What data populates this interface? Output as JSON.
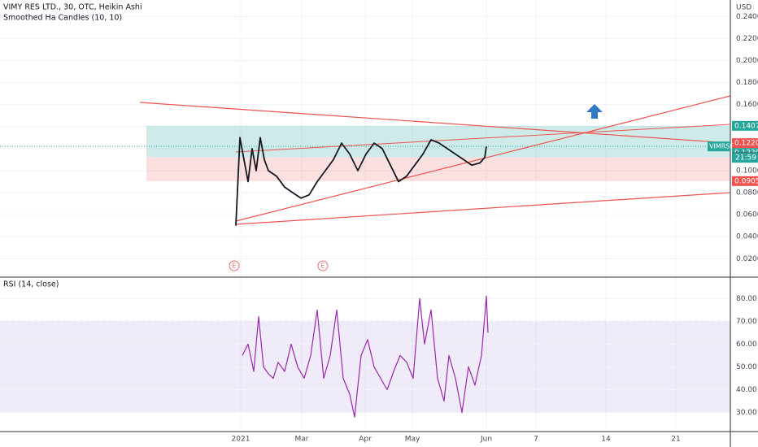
{
  "chart_data": [
    {
      "type": "line",
      "title": "VIMY RES LTD., 30, OTC, Heikin Ashi",
      "subtitle": "Smoothed Ha Candles (10, 10)",
      "currency": "USD",
      "symbol": "VIMRSF",
      "countdown": "21:59",
      "events": [
        "E",
        "E"
      ],
      "x": [
        290,
        295,
        300,
        305,
        310,
        315,
        320,
        325,
        330,
        340,
        350,
        360,
        370,
        380,
        390,
        400,
        410,
        420,
        430,
        440,
        450,
        460,
        470,
        480,
        490,
        500,
        510,
        520,
        530,
        540,
        550,
        560,
        570,
        580,
        590,
        596,
        598
      ],
      "series": [
        {
          "name": "Close",
          "color": "#131722",
          "values": [
            0.05,
            0.13,
            0.11,
            0.09,
            0.12,
            0.1,
            0.13,
            0.11,
            0.1,
            0.095,
            0.085,
            0.08,
            0.075,
            0.078,
            0.09,
            0.1,
            0.11,
            0.125,
            0.115,
            0.1,
            0.115,
            0.125,
            0.12,
            0.105,
            0.09,
            0.095,
            0.105,
            0.115,
            0.128,
            0.125,
            0.12,
            0.115,
            0.11,
            0.105,
            0.107,
            0.112,
            0.122
          ]
        }
      ],
      "price_labels": [
        {
          "value": 0.1407,
          "label": "0.1407",
          "color": "#26a69a"
        },
        {
          "value": 0.122,
          "label": "0.1220",
          "color": "#ef5350"
        },
        {
          "value": 0.122,
          "label": "0.1220",
          "color": "#26a69a"
        },
        {
          "value": 0.1121,
          "label": "0.1121",
          "color": "#434651"
        },
        {
          "value": 0.0905,
          "label": "0.0905",
          "color": "#ef5350"
        }
      ],
      "xlim": [
        0,
        898
      ],
      "xticks": [
        {
          "value": 296,
          "label": "2021"
        },
        {
          "value": 371,
          "label": "Mar"
        },
        {
          "value": 449,
          "label": "Apr"
        },
        {
          "value": 507,
          "label": "May"
        },
        {
          "value": 598,
          "label": "Jun"
        },
        {
          "value": 659,
          "label": "7"
        },
        {
          "value": 745,
          "label": "14"
        },
        {
          "value": 831,
          "label": "21"
        }
      ],
      "ylim": [
        0.004,
        0.255
      ],
      "yticks": [
        {
          "value": 0.02,
          "label": "0.0200"
        },
        {
          "value": 0.04,
          "label": "0.0400"
        },
        {
          "value": 0.06,
          "label": "0.0600"
        },
        {
          "value": 0.08,
          "label": "0.0800"
        },
        {
          "value": 0.1,
          "label": "0.1000"
        },
        {
          "value": 0.12,
          "label": "0.1200"
        },
        {
          "value": 0.14,
          "label": "0.1400"
        },
        {
          "value": 0.16,
          "label": "0.1600"
        },
        {
          "value": 0.18,
          "label": "0.1800"
        },
        {
          "value": 0.2,
          "label": "0.2000"
        },
        {
          "value": 0.22,
          "label": "0.2200"
        },
        {
          "value": 0.24,
          "label": "0.2400"
        }
      ],
      "grid": true
    },
    {
      "type": "line",
      "title": "RSI (14, close)",
      "x": [
        298,
        305,
        312,
        318,
        324,
        330,
        336,
        342,
        350,
        358,
        366,
        374,
        382,
        390,
        398,
        406,
        414,
        422,
        430,
        436,
        444,
        452,
        460,
        468,
        476,
        484,
        492,
        500,
        508,
        516,
        522,
        530,
        538,
        546,
        552,
        560,
        568,
        576,
        584,
        592,
        598,
        600
      ],
      "series": [
        {
          "name": "RSI",
          "color": "#9c27b0",
          "values": [
            55,
            60,
            48,
            72,
            50,
            47,
            45,
            52,
            48,
            60,
            50,
            45,
            55,
            75,
            45,
            55,
            75,
            45,
            38,
            28,
            55,
            62,
            50,
            45,
            40,
            48,
            55,
            52,
            45,
            80,
            60,
            75,
            45,
            35,
            55,
            45,
            30,
            50,
            42,
            55,
            81,
            65
          ]
        }
      ],
      "band": [
        30,
        70
      ],
      "xlim": [
        0,
        898
      ],
      "ylim": [
        22,
        89
      ],
      "yticks": [
        {
          "value": 30,
          "label": "30.00"
        },
        {
          "value": 40,
          "label": "40.00"
        },
        {
          "value": 50,
          "label": "50.00"
        },
        {
          "value": 60,
          "label": "60.00"
        },
        {
          "value": 70,
          "label": "70.00"
        },
        {
          "value": 80,
          "label": "80.00"
        }
      ],
      "grid": true
    }
  ]
}
